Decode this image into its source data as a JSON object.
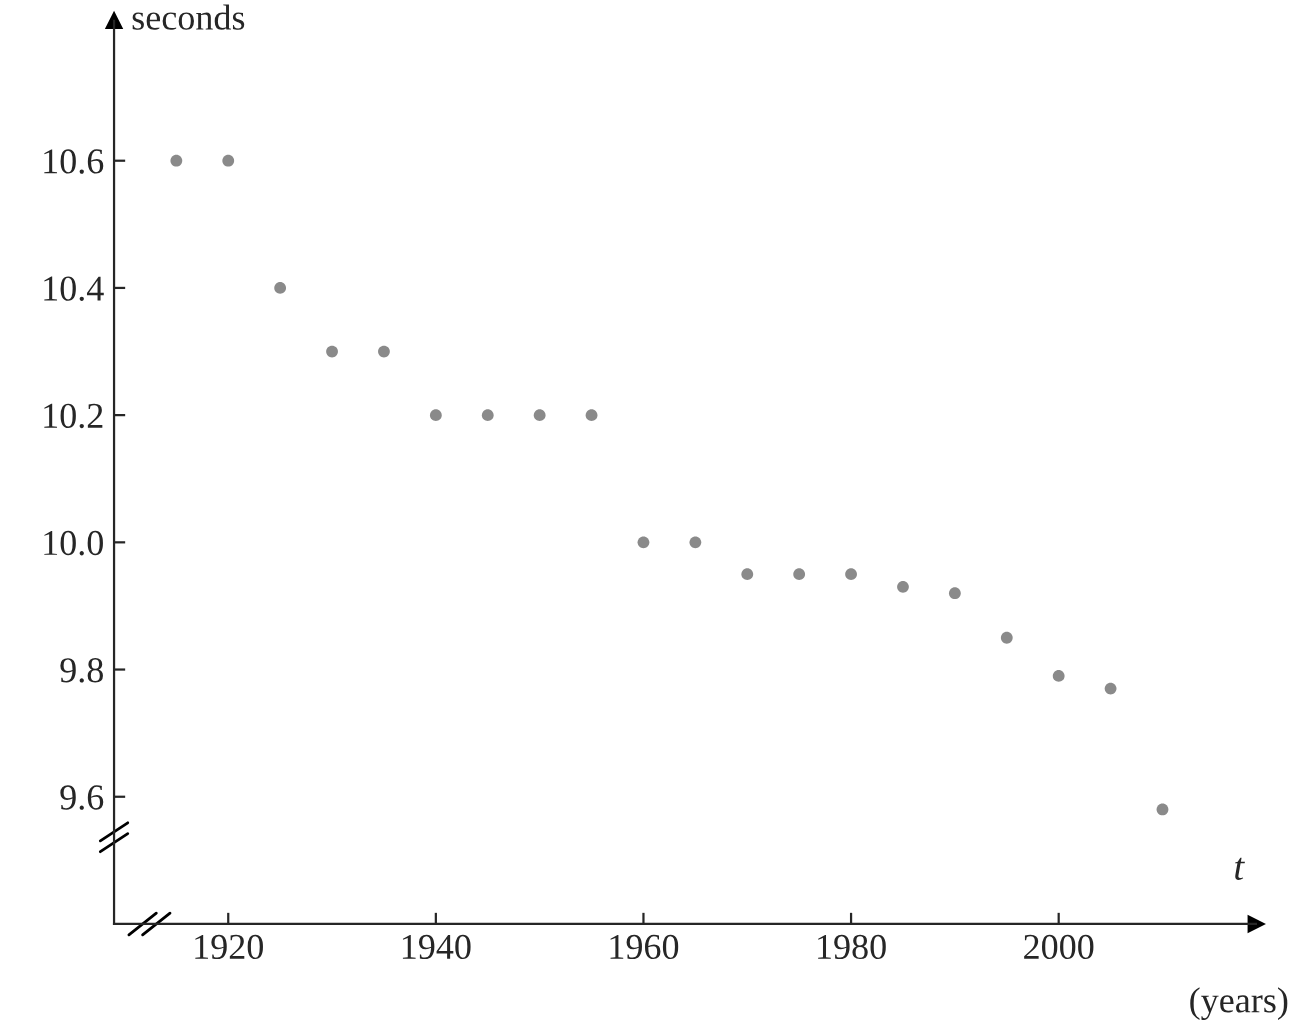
{
  "chart_data": {
    "type": "scatter",
    "ylabel": "seconds",
    "xlabel": "t",
    "annotations": [
      "(years)"
    ],
    "x": [
      1915,
      1920,
      1925,
      1930,
      1935,
      1940,
      1945,
      1950,
      1955,
      1960,
      1965,
      1970,
      1975,
      1980,
      1985,
      1990,
      1995,
      2000,
      2005,
      2010
    ],
    "series": [
      {
        "color": "#8a8a8a",
        "values": [
          10.6,
          10.6,
          10.4,
          10.3,
          10.3,
          10.2,
          10.2,
          10.2,
          10.2,
          10.0,
          10.0,
          9.95,
          9.95,
          9.95,
          9.93,
          9.92,
          9.85,
          9.79,
          9.77,
          9.58
        ]
      }
    ],
    "xlim": [
      1909,
      2019
    ],
    "xticks": [
      1920,
      1940,
      1960,
      1980,
      2000
    ],
    "ylim": [
      9.4,
      10.82
    ],
    "yticks": [
      {
        "value": 9.6,
        "label": "9.6"
      },
      {
        "value": 9.8,
        "label": "9.8"
      },
      {
        "value": 10.0,
        "label": "10.0"
      },
      {
        "value": 10.2,
        "label": "10.2"
      },
      {
        "value": 10.4,
        "label": "10.4"
      },
      {
        "value": 10.6,
        "label": "10.6"
      }
    ],
    "marker": "circle",
    "grid": false,
    "legend": false
  }
}
